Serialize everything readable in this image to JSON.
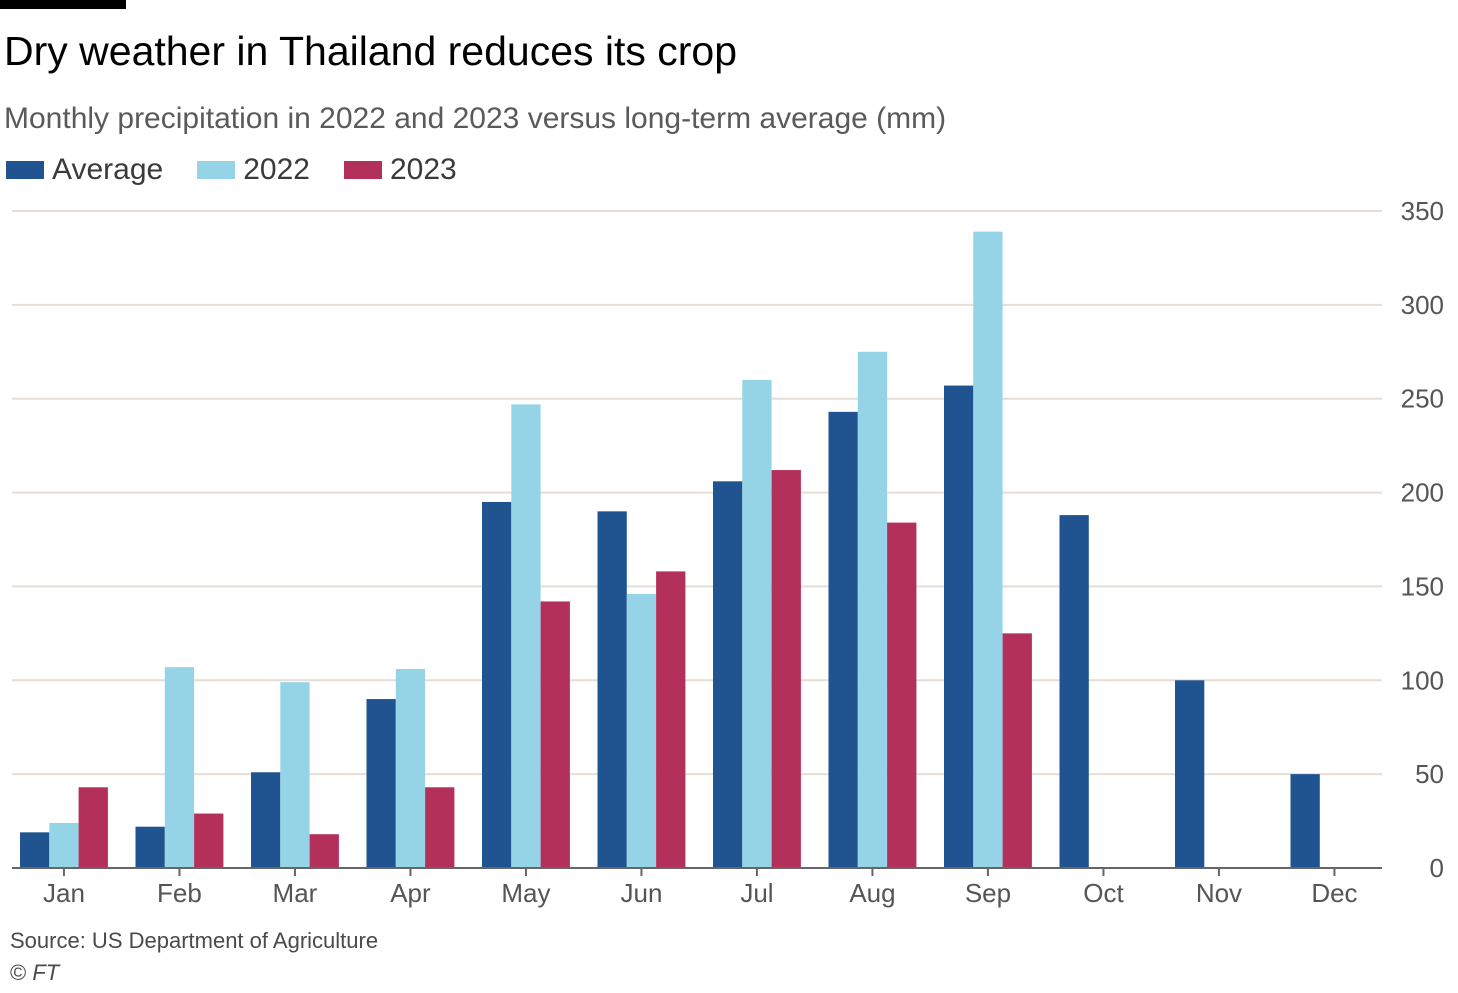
{
  "colors": {
    "average": "#1f5490",
    "y2022": "#95d4e6",
    "y2023": "#b3305b",
    "grid": "#e6ddd6",
    "axis": "#666666",
    "tick_text": "#555555"
  },
  "header": {
    "title": "Dry weather in Thailand reduces its crop",
    "subtitle": "Monthly precipitation in 2022 and 2023 versus long-term average (mm)"
  },
  "legend": {
    "items": [
      {
        "label": "Average",
        "color": "#1f5490"
      },
      {
        "label": "2022",
        "color": "#95d4e6"
      },
      {
        "label": "2023",
        "color": "#b3305b"
      }
    ]
  },
  "footer": {
    "source": "Source: US Department of Agriculture",
    "copyright_mark": "©",
    "copyright_brand": "FT"
  },
  "chart_data": {
    "type": "bar",
    "title": "Dry weather in Thailand reduces its crop",
    "subtitle": "Monthly precipitation in 2022 and 2023 versus long-term average (mm)",
    "xlabel": "",
    "ylabel": "",
    "ylim": [
      0,
      350
    ],
    "yticks": [
      0,
      50,
      100,
      150,
      200,
      250,
      300,
      350
    ],
    "grid": true,
    "y_axis_side": "right",
    "legend_position": "top-left",
    "categories": [
      "Jan",
      "Feb",
      "Mar",
      "Apr",
      "May",
      "Jun",
      "Jul",
      "Aug",
      "Sep",
      "Oct",
      "Nov",
      "Dec"
    ],
    "series": [
      {
        "name": "Average",
        "values": [
          19,
          22,
          51,
          90,
          195,
          190,
          206,
          243,
          257,
          188,
          100,
          50
        ]
      },
      {
        "name": "2022",
        "values": [
          24,
          107,
          99,
          106,
          247,
          146,
          260,
          275,
          339,
          null,
          null,
          null
        ]
      },
      {
        "name": "2023",
        "values": [
          43,
          29,
          18,
          43,
          142,
          158,
          212,
          184,
          125,
          null,
          null,
          null
        ]
      }
    ]
  }
}
